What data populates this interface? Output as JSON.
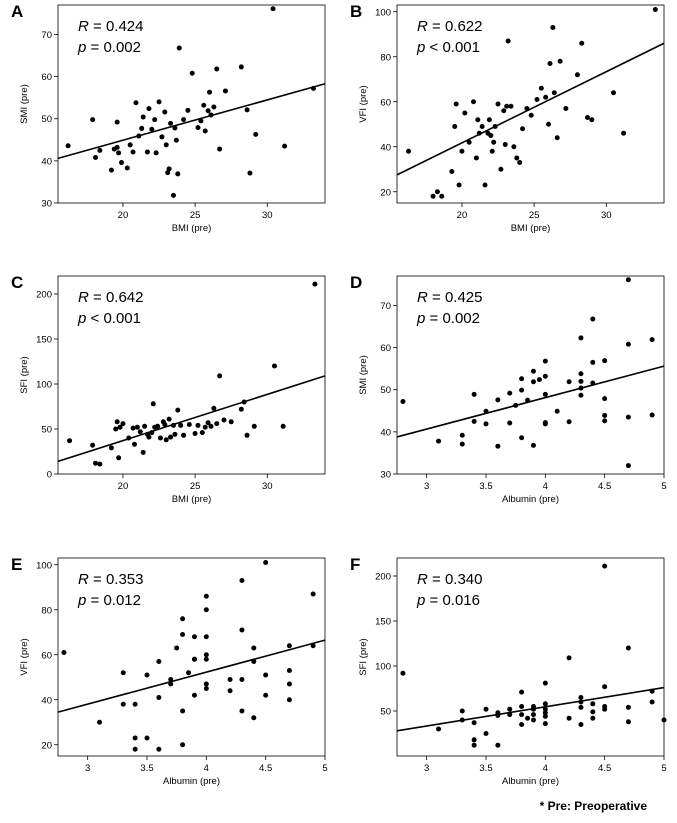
{
  "footnote": "* Pre: Preoperative",
  "chart_data": [
    {
      "panel": "A",
      "type": "scatter",
      "xlabel": "BMI (pre)",
      "ylabel": "SMI (pre)",
      "stat_r_label": "R",
      "stat_r_value": "= 0.424",
      "stat_p_label": "p",
      "stat_p_value": "= 0.002",
      "xlim": [
        15.5,
        34
      ],
      "ylim": [
        30,
        77
      ],
      "xticks": [
        20,
        25,
        30
      ],
      "yticks": [
        30,
        40,
        50,
        60,
        70
      ],
      "fit": [
        [
          15.5,
          40.6
        ],
        [
          34,
          58.3
        ]
      ],
      "points": [
        [
          16.2,
          43.6
        ],
        [
          17.9,
          49.8
        ],
        [
          18.1,
          40.8
        ],
        [
          18.4,
          42.5
        ],
        [
          19.2,
          37.8
        ],
        [
          19.4,
          42.8
        ],
        [
          19.6,
          49.2
        ],
        [
          19.7,
          41.9
        ],
        [
          19.6,
          43.2
        ],
        [
          19.9,
          39.6
        ],
        [
          20.3,
          38.3
        ],
        [
          20.5,
          43.8
        ],
        [
          20.7,
          42.1
        ],
        [
          20.9,
          53.8
        ],
        [
          21.1,
          45.9
        ],
        [
          21.3,
          47.7
        ],
        [
          21.4,
          50.4
        ],
        [
          21.7,
          42.1
        ],
        [
          21.8,
          52.4
        ],
        [
          22.0,
          47.5
        ],
        [
          22.2,
          49.8
        ],
        [
          22.3,
          41.9
        ],
        [
          22.5,
          54.0
        ],
        [
          22.7,
          45.7
        ],
        [
          22.9,
          51.6
        ],
        [
          23.0,
          43.8
        ],
        [
          23.1,
          37.2
        ],
        [
          23.2,
          38.1
        ],
        [
          23.3,
          48.9
        ],
        [
          23.5,
          31.8
        ],
        [
          23.6,
          47.8
        ],
        [
          23.7,
          44.9
        ],
        [
          23.8,
          36.9
        ],
        [
          23.9,
          66.8
        ],
        [
          24.2,
          49.8
        ],
        [
          24.5,
          52.0
        ],
        [
          24.8,
          60.8
        ],
        [
          25.2,
          47.9
        ],
        [
          25.4,
          49.5
        ],
        [
          25.6,
          53.2
        ],
        [
          25.7,
          47.1
        ],
        [
          25.9,
          51.9
        ],
        [
          26.0,
          56.3
        ],
        [
          26.1,
          50.9
        ],
        [
          26.3,
          52.8
        ],
        [
          26.5,
          61.8
        ],
        [
          26.7,
          42.8
        ],
        [
          27.1,
          56.6
        ],
        [
          28.2,
          62.3
        ],
        [
          28.6,
          52.1
        ],
        [
          28.8,
          37.1
        ],
        [
          29.2,
          46.3
        ],
        [
          30.4,
          76.1
        ],
        [
          31.2,
          43.5
        ],
        [
          33.2,
          57.2
        ]
      ]
    },
    {
      "panel": "B",
      "type": "scatter",
      "xlabel": "BMI (pre)",
      "ylabel": "VFI (pre)",
      "stat_r_label": "R",
      "stat_r_value": "= 0.622",
      "stat_p_label": "p",
      "stat_p_value": "< 0.001",
      "xlim": [
        15.5,
        34
      ],
      "ylim": [
        15,
        103
      ],
      "xticks": [
        20,
        25,
        30
      ],
      "yticks": [
        20,
        40,
        60,
        80,
        100
      ],
      "fit": [
        [
          15.5,
          27.5
        ],
        [
          34,
          86.0
        ]
      ],
      "points": [
        [
          16.3,
          38
        ],
        [
          18.0,
          18
        ],
        [
          18.3,
          20
        ],
        [
          18.6,
          18
        ],
        [
          19.3,
          29
        ],
        [
          19.5,
          49
        ],
        [
          19.6,
          59
        ],
        [
          19.8,
          23
        ],
        [
          20.0,
          38
        ],
        [
          20.2,
          55
        ],
        [
          20.5,
          42
        ],
        [
          20.8,
          60
        ],
        [
          21.0,
          35
        ],
        [
          21.1,
          52
        ],
        [
          21.2,
          46
        ],
        [
          21.4,
          49
        ],
        [
          21.6,
          23
        ],
        [
          21.8,
          46
        ],
        [
          21.9,
          52
        ],
        [
          22.0,
          45
        ],
        [
          22.1,
          38
        ],
        [
          22.2,
          42
        ],
        [
          22.3,
          49
        ],
        [
          22.5,
          59
        ],
        [
          22.7,
          30
        ],
        [
          22.9,
          56
        ],
        [
          23.0,
          41
        ],
        [
          23.1,
          58
        ],
        [
          23.2,
          87
        ],
        [
          23.4,
          58
        ],
        [
          23.6,
          40
        ],
        [
          23.8,
          35
        ],
        [
          24.0,
          33
        ],
        [
          24.2,
          48
        ],
        [
          24.5,
          57
        ],
        [
          24.8,
          54
        ],
        [
          25.2,
          61
        ],
        [
          25.5,
          66
        ],
        [
          25.8,
          62
        ],
        [
          26.0,
          50
        ],
        [
          26.1,
          77
        ],
        [
          26.3,
          93
        ],
        [
          26.4,
          64
        ],
        [
          26.6,
          44
        ],
        [
          26.8,
          78
        ],
        [
          27.2,
          57
        ],
        [
          28.0,
          72
        ],
        [
          28.3,
          86
        ],
        [
          28.7,
          53
        ],
        [
          29.0,
          52
        ],
        [
          30.5,
          64
        ],
        [
          31.2,
          46
        ],
        [
          33.4,
          101
        ]
      ]
    },
    {
      "panel": "C",
      "type": "scatter",
      "xlabel": "BMI (pre)",
      "ylabel": "SFI (pre)",
      "stat_r_label": "R",
      "stat_r_value": "= 0.642",
      "stat_p_label": "p",
      "stat_p_value": "< 0.001",
      "xlim": [
        15.5,
        34
      ],
      "ylim": [
        0,
        220
      ],
      "xticks": [
        20,
        25,
        30
      ],
      "yticks": [
        0,
        50,
        100,
        150,
        200
      ],
      "fit": [
        [
          15.5,
          14
        ],
        [
          34,
          109
        ]
      ],
      "points": [
        [
          16.3,
          37
        ],
        [
          17.9,
          32
        ],
        [
          18.1,
          12
        ],
        [
          18.4,
          11
        ],
        [
          19.2,
          29
        ],
        [
          19.5,
          50
        ],
        [
          19.6,
          58
        ],
        [
          19.7,
          18
        ],
        [
          19.8,
          52
        ],
        [
          20.0,
          56
        ],
        [
          20.4,
          40
        ],
        [
          20.7,
          51
        ],
        [
          20.8,
          33
        ],
        [
          21.0,
          52
        ],
        [
          21.2,
          47
        ],
        [
          21.4,
          24
        ],
        [
          21.5,
          53
        ],
        [
          21.7,
          44
        ],
        [
          21.8,
          41
        ],
        [
          22.0,
          46
        ],
        [
          22.1,
          78
        ],
        [
          22.2,
          52
        ],
        [
          22.4,
          53
        ],
        [
          22.6,
          40
        ],
        [
          22.8,
          58
        ],
        [
          22.9,
          55
        ],
        [
          23.0,
          38
        ],
        [
          23.2,
          61
        ],
        [
          23.3,
          41
        ],
        [
          23.5,
          54
        ],
        [
          23.6,
          44
        ],
        [
          23.8,
          71
        ],
        [
          24.0,
          54
        ],
        [
          24.2,
          43
        ],
        [
          24.6,
          55
        ],
        [
          25.0,
          45
        ],
        [
          25.2,
          54
        ],
        [
          25.5,
          46
        ],
        [
          25.7,
          52
        ],
        [
          25.9,
          57
        ],
        [
          26.1,
          53
        ],
        [
          26.3,
          73
        ],
        [
          26.5,
          56
        ],
        [
          26.7,
          109
        ],
        [
          27.0,
          60
        ],
        [
          27.5,
          58
        ],
        [
          28.2,
          72
        ],
        [
          28.4,
          80
        ],
        [
          28.6,
          43
        ],
        [
          29.1,
          53
        ],
        [
          30.5,
          120
        ],
        [
          31.1,
          53
        ],
        [
          33.3,
          211
        ]
      ]
    },
    {
      "panel": "D",
      "type": "scatter",
      "xlabel": "Albumin (pre)",
      "ylabel": "SMI (pre)",
      "stat_r_label": "R",
      "stat_r_value": "= 0.425",
      "stat_p_label": "p",
      "stat_p_value": "= 0.002",
      "xlim": [
        2.75,
        5
      ],
      "ylim": [
        30,
        77
      ],
      "xticks": [
        3,
        3.5,
        4,
        4.5,
        5
      ],
      "yticks": [
        30,
        40,
        50,
        60,
        70
      ],
      "fit": [
        [
          2.75,
          38.8
        ],
        [
          5,
          55.6
        ]
      ],
      "points": [
        [
          2.8,
          47.2
        ],
        [
          3.1,
          37.8
        ],
        [
          3.3,
          37.1
        ],
        [
          3.3,
          39.2
        ],
        [
          3.4,
          42.5
        ],
        [
          3.4,
          48.9
        ],
        [
          3.5,
          41.9
        ],
        [
          3.5,
          44.9
        ],
        [
          3.6,
          47.6
        ],
        [
          3.6,
          36.6
        ],
        [
          3.7,
          49.2
        ],
        [
          3.7,
          42.1
        ],
        [
          3.75,
          46.3
        ],
        [
          3.8,
          49.9
        ],
        [
          3.8,
          52.6
        ],
        [
          3.8,
          38.6
        ],
        [
          3.85,
          47.5
        ],
        [
          3.9,
          36.8
        ],
        [
          3.9,
          51.9
        ],
        [
          3.9,
          54.4
        ],
        [
          3.95,
          52.4
        ],
        [
          4.0,
          56.8
        ],
        [
          4.0,
          42.2
        ],
        [
          4.0,
          41.9
        ],
        [
          4.0,
          48.9
        ],
        [
          4.0,
          53.2
        ],
        [
          4.1,
          44.9
        ],
        [
          4.2,
          42.4
        ],
        [
          4.2,
          51.9
        ],
        [
          4.3,
          62.3
        ],
        [
          4.3,
          48.7
        ],
        [
          4.3,
          52.0
        ],
        [
          4.3,
          53.8
        ],
        [
          4.3,
          50.4
        ],
        [
          4.4,
          66.8
        ],
        [
          4.4,
          56.5
        ],
        [
          4.4,
          51.6
        ],
        [
          4.5,
          47.9
        ],
        [
          4.5,
          42.6
        ],
        [
          4.5,
          43.9
        ],
        [
          4.5,
          56.9
        ],
        [
          4.7,
          76.1
        ],
        [
          4.7,
          60.8
        ],
        [
          4.7,
          43.5
        ],
        [
          4.7,
          32.0
        ],
        [
          4.9,
          61.9
        ],
        [
          4.9,
          44.0
        ]
      ]
    },
    {
      "panel": "E",
      "type": "scatter",
      "xlabel": "Albumin (pre)",
      "ylabel": "VFI (pre)",
      "stat_r_label": "R",
      "stat_r_value": "= 0.353",
      "stat_p_label": "p",
      "stat_p_value": "= 0.012",
      "xlim": [
        2.75,
        5
      ],
      "ylim": [
        15,
        103
      ],
      "xticks": [
        3,
        3.5,
        4,
        4.5,
        5
      ],
      "yticks": [
        20,
        40,
        60,
        80,
        100
      ],
      "fit": [
        [
          2.75,
          34.5
        ],
        [
          5,
          66.5
        ]
      ],
      "points": [
        [
          2.8,
          61
        ],
        [
          3.1,
          30
        ],
        [
          3.3,
          52
        ],
        [
          3.3,
          38
        ],
        [
          3.4,
          23
        ],
        [
          3.4,
          38
        ],
        [
          3.4,
          18
        ],
        [
          3.5,
          23
        ],
        [
          3.5,
          51
        ],
        [
          3.6,
          18
        ],
        [
          3.6,
          57
        ],
        [
          3.6,
          41
        ],
        [
          3.7,
          47
        ],
        [
          3.7,
          49
        ],
        [
          3.75,
          63
        ],
        [
          3.8,
          76
        ],
        [
          3.8,
          69
        ],
        [
          3.8,
          35
        ],
        [
          3.8,
          20
        ],
        [
          3.85,
          52
        ],
        [
          3.9,
          68
        ],
        [
          3.9,
          58
        ],
        [
          3.9,
          58
        ],
        [
          3.9,
          42
        ],
        [
          4.0,
          86
        ],
        [
          4.0,
          80
        ],
        [
          4.0,
          68
        ],
        [
          4.0,
          60
        ],
        [
          4.0,
          45
        ],
        [
          4.0,
          47
        ],
        [
          4.0,
          58
        ],
        [
          4.2,
          49
        ],
        [
          4.2,
          44
        ],
        [
          4.3,
          93
        ],
        [
          4.3,
          71
        ],
        [
          4.3,
          35
        ],
        [
          4.3,
          49
        ],
        [
          4.4,
          57
        ],
        [
          4.4,
          63
        ],
        [
          4.4,
          32
        ],
        [
          4.5,
          101
        ],
        [
          4.5,
          51
        ],
        [
          4.5,
          42
        ],
        [
          4.7,
          64
        ],
        [
          4.7,
          53
        ],
        [
          4.7,
          47
        ],
        [
          4.7,
          40
        ],
        [
          4.9,
          87
        ],
        [
          4.9,
          64
        ]
      ]
    },
    {
      "panel": "F",
      "type": "scatter",
      "xlabel": "Albumin (pre)",
      "ylabel": "SFI (pre)",
      "stat_r_label": "R",
      "stat_r_value": "= 0.340",
      "stat_p_label": "p",
      "stat_p_value": "= 0.016",
      "xlim": [
        2.75,
        5
      ],
      "ylim": [
        0,
        220
      ],
      "xticks": [
        3,
        3.5,
        4,
        4.5,
        5
      ],
      "yticks": [
        50,
        100,
        150,
        200
      ],
      "fit": [
        [
          2.75,
          28
        ],
        [
          5,
          76
        ]
      ],
      "points": [
        [
          2.8,
          92
        ],
        [
          3.1,
          30
        ],
        [
          3.3,
          50
        ],
        [
          3.3,
          40
        ],
        [
          3.4,
          37
        ],
        [
          3.4,
          18
        ],
        [
          3.4,
          12
        ],
        [
          3.5,
          52
        ],
        [
          3.5,
          25
        ],
        [
          3.6,
          12
        ],
        [
          3.6,
          45
        ],
        [
          3.6,
          48
        ],
        [
          3.7,
          52
        ],
        [
          3.7,
          46
        ],
        [
          3.8,
          71
        ],
        [
          3.8,
          55
        ],
        [
          3.8,
          46
        ],
        [
          3.8,
          35
        ],
        [
          3.85,
          42
        ],
        [
          3.9,
          46
        ],
        [
          3.9,
          52
        ],
        [
          3.9,
          40
        ],
        [
          3.9,
          55
        ],
        [
          4.0,
          81
        ],
        [
          4.0,
          58
        ],
        [
          4.0,
          52
        ],
        [
          4.0,
          48
        ],
        [
          4.0,
          44
        ],
        [
          4.0,
          36
        ],
        [
          4.2,
          109
        ],
        [
          4.2,
          42
        ],
        [
          4.3,
          65
        ],
        [
          4.3,
          60
        ],
        [
          4.3,
          54
        ],
        [
          4.3,
          35
        ],
        [
          4.4,
          58
        ],
        [
          4.4,
          49
        ],
        [
          4.4,
          42
        ],
        [
          4.5,
          211
        ],
        [
          4.5,
          77
        ],
        [
          4.5,
          52
        ],
        [
          4.5,
          55
        ],
        [
          4.7,
          120
        ],
        [
          4.7,
          54
        ],
        [
          4.7,
          38
        ],
        [
          4.9,
          72
        ],
        [
          4.9,
          60
        ],
        [
          5.0,
          40
        ]
      ]
    }
  ]
}
